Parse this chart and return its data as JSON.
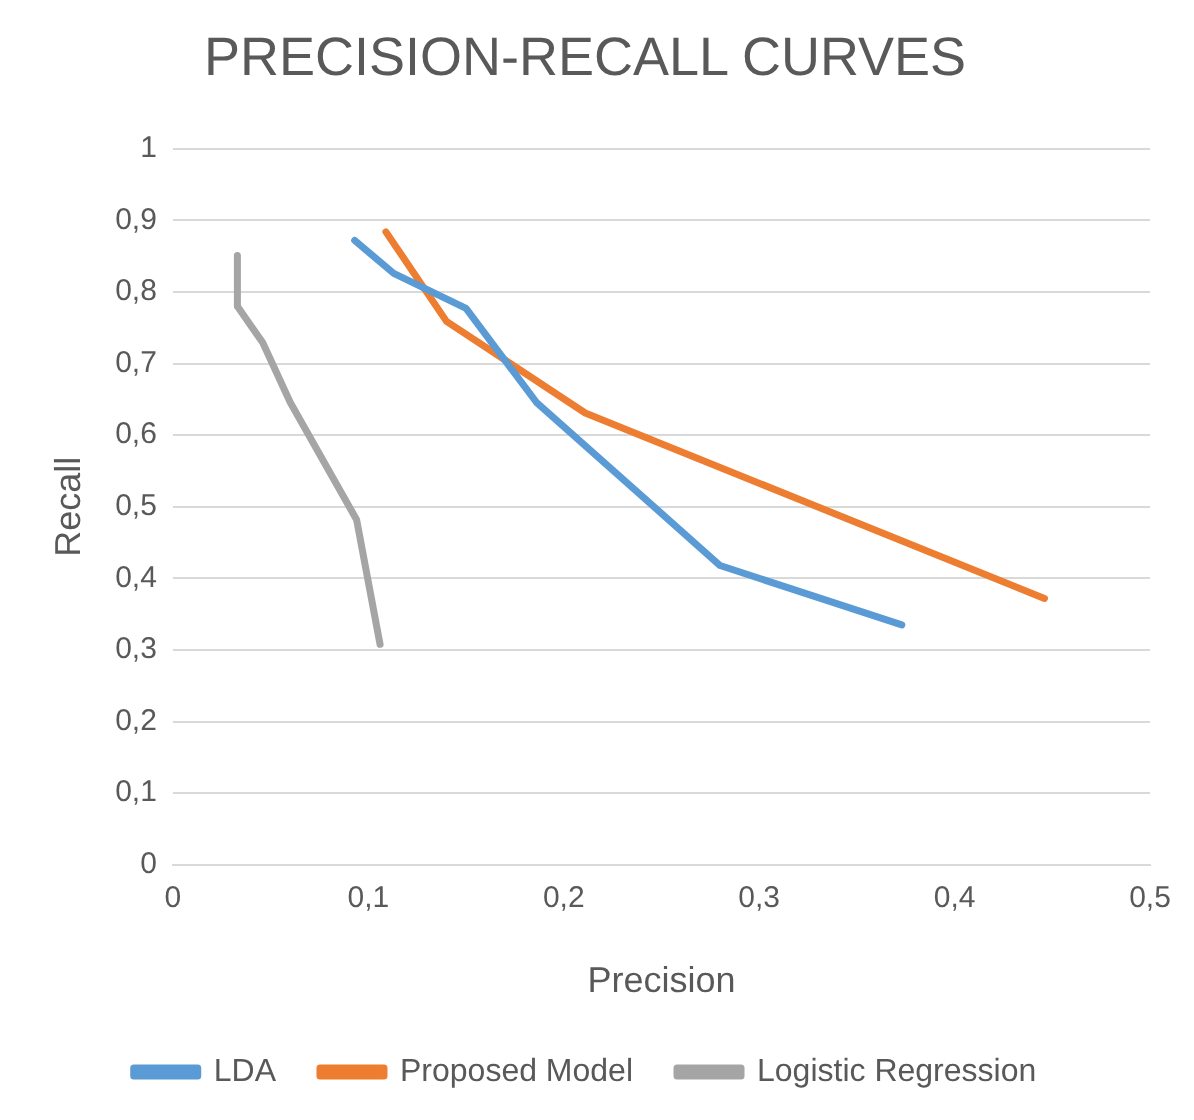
{
  "chart_data": {
    "type": "line",
    "title": "PRECISION-RECALL CURVES",
    "xlabel": "Precision",
    "ylabel": "Recall",
    "series": [
      {
        "name": "LDA",
        "color": "#5b9bd5",
        "x": [
          0.093,
          0.113,
          0.15,
          0.186,
          0.28,
          0.373
        ],
        "values": [
          0.872,
          0.826,
          0.777,
          0.646,
          0.418,
          0.335
        ]
      },
      {
        "name": "Proposed Model",
        "color": "#ed7d31",
        "x": [
          0.109,
          0.14,
          0.211,
          0.446
        ],
        "values": [
          0.884,
          0.759,
          0.631,
          0.372
        ]
      },
      {
        "name": "Logistic Regression",
        "color": "#a5a5a5",
        "x": [
          0.033,
          0.033,
          0.046,
          0.06,
          0.094,
          0.106
        ],
        "values": [
          0.851,
          0.78,
          0.729,
          0.646,
          0.482,
          0.308
        ]
      }
    ],
    "xlim": [
      0,
      0.5
    ],
    "xticks": [
      0,
      {
        "value": 0.1,
        "label": "0,1"
      },
      {
        "value": 0.2,
        "label": "0,2"
      },
      {
        "value": 0.3,
        "label": "0,3"
      },
      {
        "value": 0.4,
        "label": "0,4"
      },
      {
        "value": 0.5,
        "label": "0,5"
      }
    ],
    "ylim": [
      0,
      1
    ],
    "yticks": [
      0,
      {
        "value": 0.1,
        "label": "0,1"
      },
      {
        "value": 0.2,
        "label": "0,2"
      },
      {
        "value": 0.3,
        "label": "0,3"
      },
      {
        "value": 0.4,
        "label": "0,4"
      },
      {
        "value": 0.5,
        "label": "0,5"
      },
      {
        "value": 0.6,
        "label": "0,6"
      },
      {
        "value": 0.7,
        "label": "0,7"
      },
      {
        "value": 0.8,
        "label": "0,8"
      },
      {
        "value": 0.9,
        "label": "0,9"
      },
      1
    ],
    "grid": "y",
    "legend": "bottom",
    "marker": "none",
    "line_style": "solid"
  }
}
